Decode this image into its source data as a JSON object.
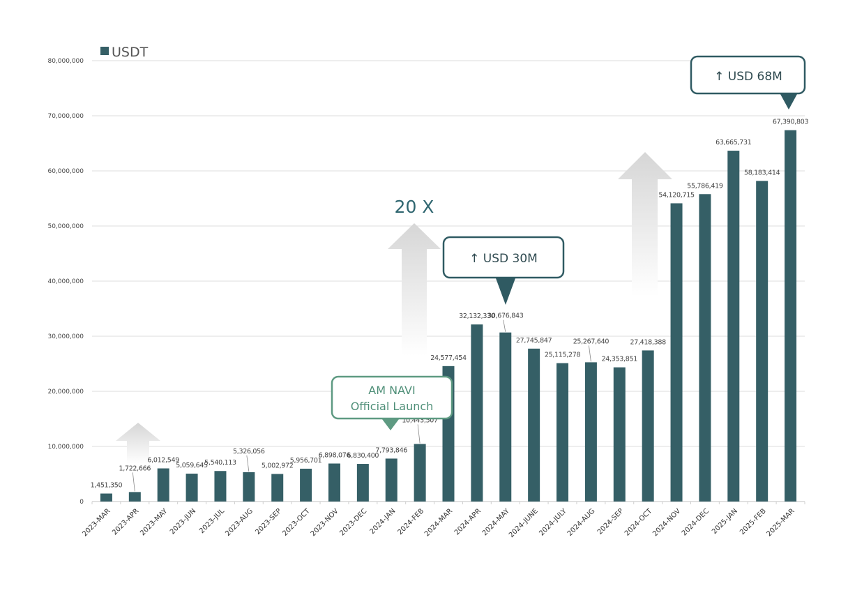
{
  "chart_data": {
    "type": "bar",
    "title": "",
    "xlabel": "",
    "ylabel": "",
    "ylim": [
      0,
      80000000
    ],
    "yticks": [
      "0",
      "10,000,000",
      "20,000,000",
      "30,000,000",
      "40,000,000",
      "50,000,000",
      "60,000,000",
      "70,000,000",
      "80,000,000"
    ],
    "grid": true,
    "legend_position": "top-left",
    "bar_color": "#355f66",
    "categories": [
      "2023-MAR",
      "2023-APR",
      "2023-MAY",
      "2023-JUN",
      "2023-JUL",
      "2023-AUG",
      "2023-SEP",
      "2023-OCT",
      "2023-NOV",
      "2023-DEC",
      "2024-JAN",
      "2024-FEB",
      "2024-MAR",
      "2024-APR",
      "2024-MAY",
      "2024-JUNE",
      "2024-JULY",
      "2024-AUG",
      "2024-SEP",
      "2024-OCT",
      "2024-NOV",
      "2024-DEC",
      "2025-JAN",
      "2025-FEB",
      "2025-MAR"
    ],
    "series": [
      {
        "name": "USDT",
        "values": [
          1451350,
          1722666,
          6012549,
          5059645,
          5540113,
          5326056,
          5002972,
          5956701,
          6898076,
          6830400,
          7793846,
          10443507,
          24577454,
          32132330,
          30676843,
          27745847,
          25115278,
          25267640,
          24353851,
          27418388,
          54120715,
          55786419,
          63665731,
          58183414,
          67390803
        ],
        "labels": [
          "1,451,350",
          "1,722,666",
          "6,012,549",
          "5,059,645",
          "5,540,113",
          "5,326,056",
          "5,002,972",
          "5,956,701",
          "6,898,076",
          "6,830,400",
          "7,793,846",
          "10,443,507",
          "24,577,454",
          "32,132,330",
          "30,676,843",
          "27,745,847",
          "25,115,278",
          "25,267,640",
          "24,353,851",
          "27,418,388",
          "54,120,715",
          "55,786,419",
          "63,665,731",
          "58,183,414",
          "67,390,803"
        ]
      }
    ],
    "annotations": {
      "growth": "20 X",
      "launch": [
        "AM NAVI",
        "Official Launch"
      ],
      "callout_30m": "↑ USD 30M",
      "callout_68m": "↑ USD 68M"
    },
    "colors": {
      "launch": "#5e9a82",
      "callout": "#2f5a62",
      "growth_text": "#2f6670",
      "arrow": "#d9d9d9"
    }
  }
}
